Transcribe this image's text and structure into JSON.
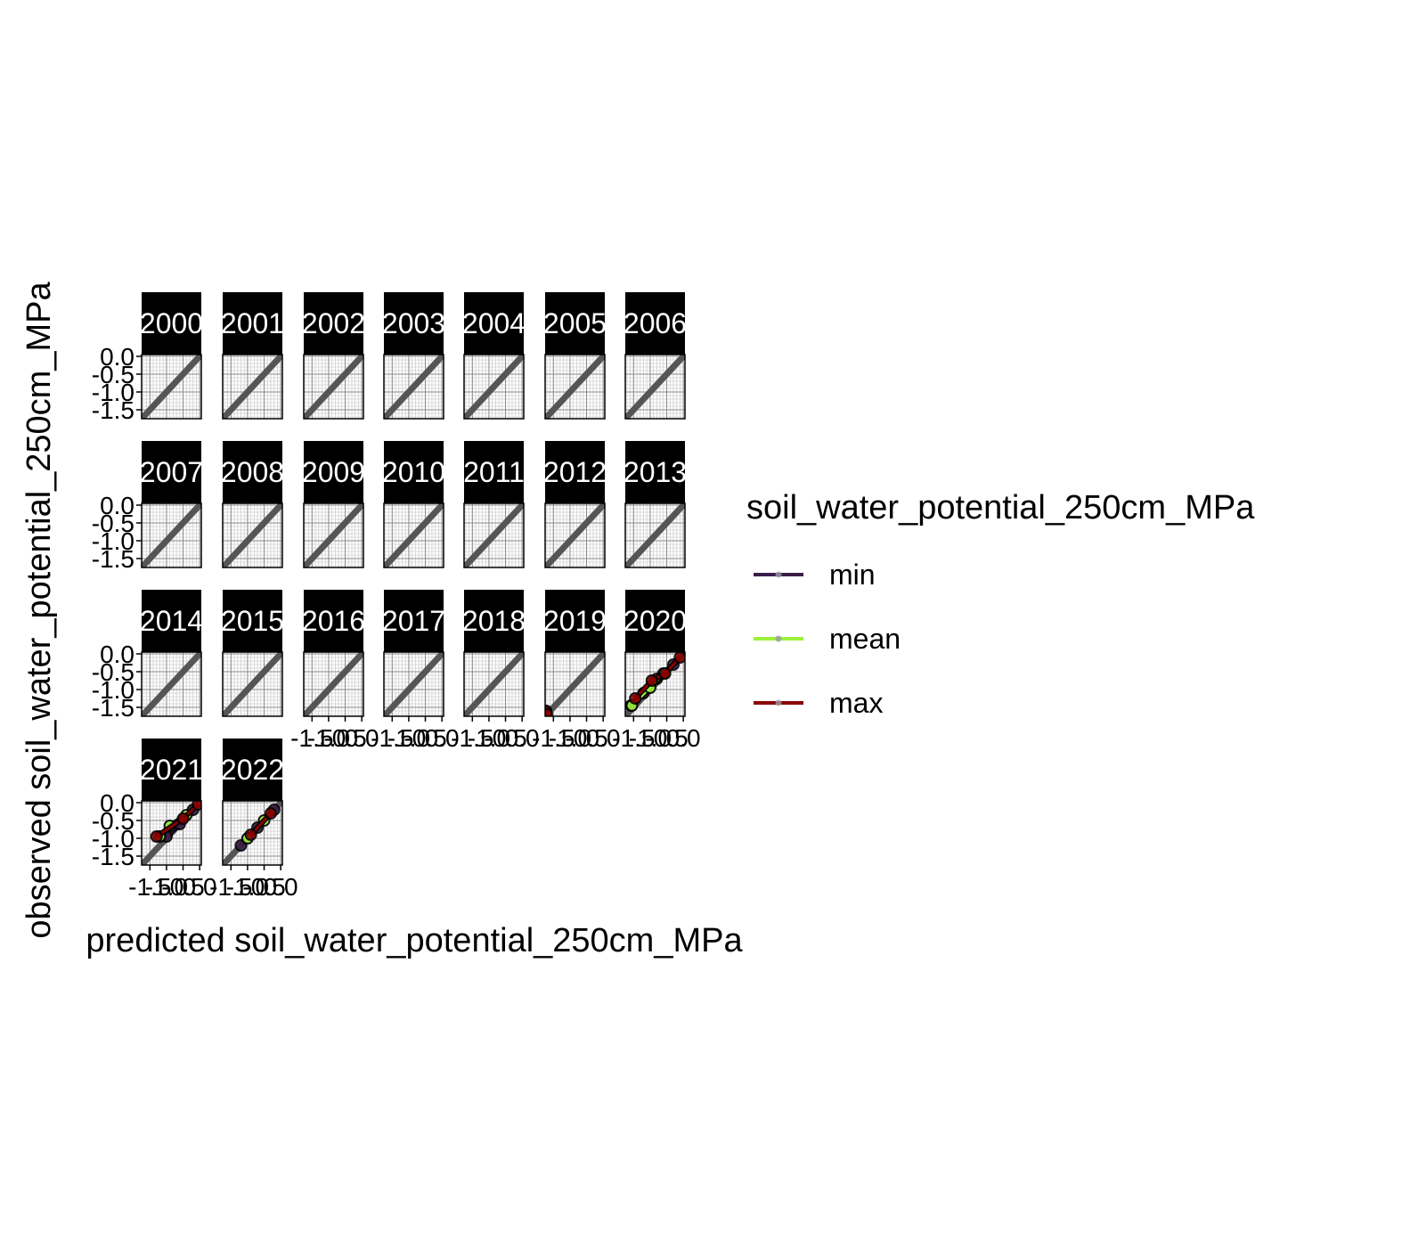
{
  "chart_data": {
    "type": "scatter",
    "facets": [
      "2000",
      "2001",
      "2002",
      "2003",
      "2004",
      "2005",
      "2006",
      "2007",
      "2008",
      "2009",
      "2010",
      "2011",
      "2012",
      "2013",
      "2014",
      "2015",
      "2016",
      "2017",
      "2018",
      "2019",
      "2020",
      "2021",
      "2022"
    ],
    "xlabel": "predicted soil_water_potential_250cm_MPa",
    "ylabel": "observed soil_water_potential_250cm_MPa",
    "xlim": [
      -1.75,
      0.05
    ],
    "ylim": [
      -1.75,
      0.05
    ],
    "x_ticks": [
      -1.5,
      -1.0,
      -0.5,
      0.0
    ],
    "x_tick_labels": [
      "-1.5",
      "-1.0",
      "-0.5",
      "0.0"
    ],
    "y_ticks": [
      -1.5,
      -1.0,
      -0.5,
      0.0
    ],
    "y_tick_labels": [
      "-1.5",
      "-1.0",
      "-0.5",
      "0.0"
    ],
    "grid": true,
    "identity_line": true,
    "legend": {
      "title": "soil_water_potential_250cm_MPa",
      "position": "right",
      "entries": [
        {
          "name": "min",
          "color": "#3b1d4a"
        },
        {
          "name": "mean",
          "color": "#9cf23b"
        },
        {
          "name": "max",
          "color": "#8b0000"
        }
      ]
    },
    "series": [
      {
        "name": "min",
        "color": "#3b1d4a",
        "points": {
          "2019": [
            [
              -1.72,
              -1.6
            ],
            [
              -1.71,
              -1.68
            ]
          ],
          "2020": [
            [
              -1.58,
              -1.45
            ],
            [
              -1.2,
              -1.1
            ],
            [
              -0.8,
              -0.7
            ],
            [
              -0.3,
              -0.3
            ]
          ],
          "2021": [
            [
              -1.0,
              -0.95
            ],
            [
              -0.6,
              -0.6
            ],
            [
              -0.2,
              -0.2
            ]
          ],
          "2022": [
            [
              -1.2,
              -1.2
            ],
            [
              -0.7,
              -0.7
            ],
            [
              -0.2,
              -0.2
            ]
          ]
        }
      },
      {
        "name": "mean",
        "color": "#9cf23b",
        "points": {
          "2019": [
            [
              -1.72,
              -1.65
            ]
          ],
          "2020": [
            [
              -1.55,
              -1.45
            ],
            [
              -1.0,
              -0.95
            ],
            [
              -0.6,
              -0.55
            ]
          ],
          "2021": [
            [
              -1.2,
              -0.95
            ],
            [
              -0.9,
              -0.65
            ],
            [
              -0.4,
              -0.35
            ]
          ],
          "2022": [
            [
              -1.0,
              -1.0
            ],
            [
              -0.5,
              -0.5
            ]
          ]
        }
      },
      {
        "name": "max",
        "color": "#8b0000",
        "points": {
          "2019": [
            [
              -1.72,
              -1.62
            ],
            [
              -1.7,
              -1.7
            ]
          ],
          "2020": [
            [
              -1.45,
              -1.25
            ],
            [
              -0.95,
              -0.75
            ],
            [
              -0.55,
              -0.55
            ],
            [
              -0.1,
              -0.1
            ]
          ],
          "2021": [
            [
              -1.3,
              -0.95
            ],
            [
              -0.5,
              -0.45
            ],
            [
              -0.05,
              -0.05
            ]
          ],
          "2022": [
            [
              -0.9,
              -0.9
            ],
            [
              -0.3,
              -0.3
            ]
          ]
        }
      }
    ]
  }
}
